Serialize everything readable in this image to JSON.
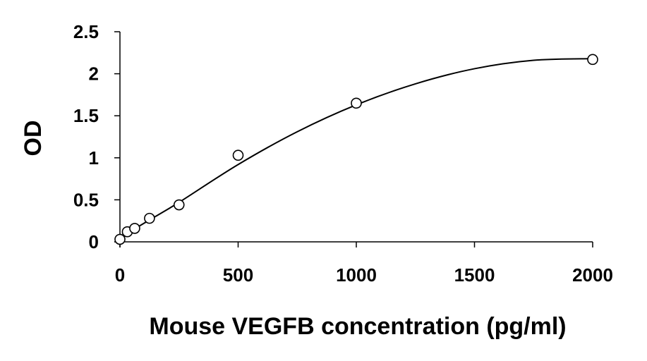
{
  "chart_data": {
    "type": "scatter",
    "title": "",
    "xlabel": "Mouse VEGFB concentration (pg/ml)",
    "ylabel": "OD",
    "xlim": [
      0,
      2000
    ],
    "ylim": [
      0,
      2.5
    ],
    "x_ticks": [
      0,
      500,
      1000,
      1500,
      2000
    ],
    "x_tick_labels": [
      "0",
      "500",
      "1000",
      "1500",
      "2000"
    ],
    "y_ticks": [
      0,
      0.5,
      1,
      1.5,
      2,
      2.5
    ],
    "y_tick_labels": [
      "0",
      "0.5",
      "1",
      "1.5",
      "2",
      "2.5"
    ],
    "grid": false,
    "legend": "none",
    "series": [
      {
        "marker": "open-circle",
        "x": [
          0,
          31.25,
          62.5,
          125,
          250,
          500,
          1000,
          2000
        ],
        "y": [
          0.03,
          0.12,
          0.16,
          0.28,
          0.44,
          1.03,
          1.65,
          2.17
        ]
      }
    ],
    "fit_curve": {
      "type": "polynomial-trendline",
      "x": [
        0,
        125,
        250,
        500,
        750,
        1000,
        1250,
        1500,
        1750,
        2000
      ],
      "y": [
        0.05,
        0.26,
        0.47,
        0.92,
        1.31,
        1.63,
        1.88,
        2.06,
        2.16,
        2.18
      ]
    },
    "colors": {
      "axis": "#000000",
      "marker_stroke": "#000000",
      "curve": "#000000",
      "background": "#ffffff"
    }
  }
}
